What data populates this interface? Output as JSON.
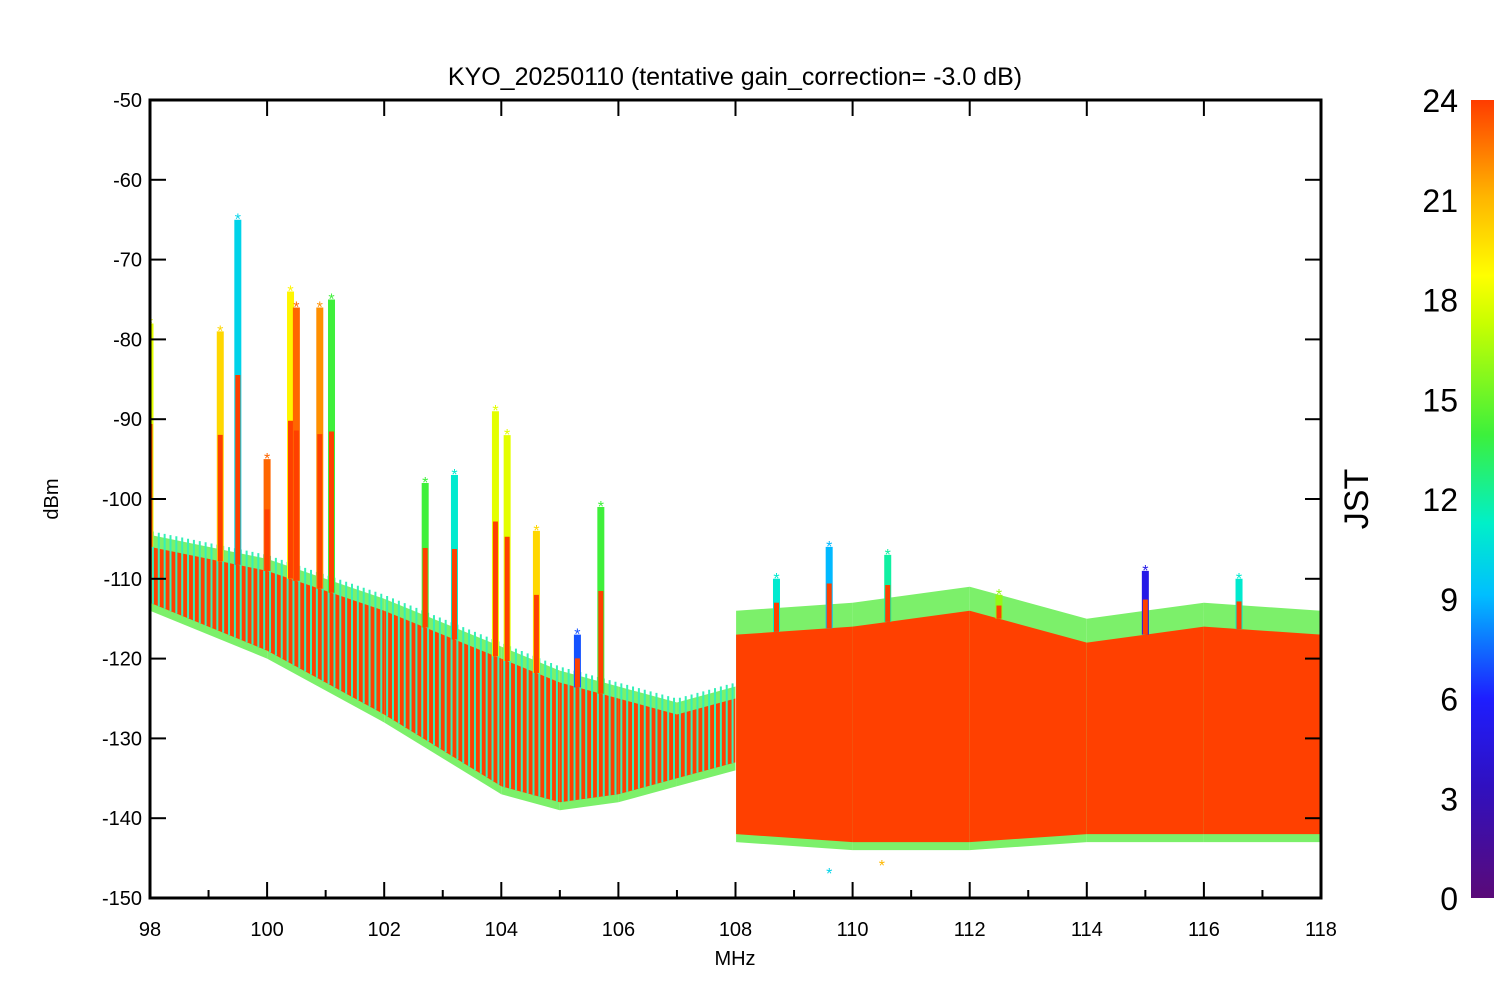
{
  "chart_data": {
    "type": "scatter",
    "title": "KYO_20250110 (tentative gain_correction= -3.0 dB)",
    "xlabel": "MHz",
    "ylabel": "dBm",
    "xlim": [
      98,
      118
    ],
    "ylim": [
      -150,
      -50
    ],
    "x_ticks": [
      "98",
      "100",
      "102",
      "104",
      "106",
      "108",
      "110",
      "112",
      "114",
      "116",
      "118"
    ],
    "y_ticks": [
      "-50",
      "-60",
      "-70",
      "-80",
      "-90",
      "-100",
      "-110",
      "-120",
      "-130",
      "-140",
      "-150"
    ],
    "grid": false,
    "marker": "asterisk",
    "colorbar": {
      "label": "JST",
      "range": [
        0,
        24
      ],
      "ticks": [
        "0",
        "3",
        "6",
        "9",
        "12",
        "15",
        "18",
        "21",
        "24"
      ],
      "colormap": "rainbow (purple-blue-cyan-green-yellow-orange-red)",
      "colors": [
        "#5a0a78",
        "#1e1eff",
        "#00bfff",
        "#00f0c8",
        "#3cf03c",
        "#e6ff00",
        "#ffb400",
        "#ff3c00"
      ]
    },
    "noise_floor": [
      {
        "x": 98,
        "y_top": -106,
        "y_bottom": -113
      },
      {
        "x": 100,
        "y_top": -109,
        "y_bottom": -119
      },
      {
        "x": 102,
        "y_top": -114,
        "y_bottom": -127
      },
      {
        "x": 104,
        "y_top": -120,
        "y_bottom": -136
      },
      {
        "x": 105,
        "y_top": -123,
        "y_bottom": -138
      },
      {
        "x": 106,
        "y_top": -125,
        "y_bottom": -137
      },
      {
        "x": 107,
        "y_top": -127,
        "y_bottom": -135
      },
      {
        "x": 108,
        "y_top": -125,
        "y_bottom": -133
      },
      {
        "x": 108.01,
        "y_top": -117,
        "y_bottom": -142
      },
      {
        "x": 110,
        "y_top": -116,
        "y_bottom": -143
      },
      {
        "x": 112,
        "y_top": -114,
        "y_bottom": -143
      },
      {
        "x": 114,
        "y_top": -118,
        "y_bottom": -142
      },
      {
        "x": 116,
        "y_top": -116,
        "y_bottom": -142
      },
      {
        "x": 118,
        "y_top": -117,
        "y_bottom": -142
      }
    ],
    "peaks": [
      {
        "x": 98.0,
        "y": -78,
        "jst": 18
      },
      {
        "x": 99.2,
        "y": -79,
        "jst": 20
      },
      {
        "x": 99.5,
        "y": -65,
        "jst": 10
      },
      {
        "x": 100.0,
        "y": -95,
        "jst": 23
      },
      {
        "x": 100.4,
        "y": -74,
        "jst": 19
      },
      {
        "x": 100.5,
        "y": -76,
        "jst": 23
      },
      {
        "x": 100.9,
        "y": -76,
        "jst": 22
      },
      {
        "x": 101.1,
        "y": -75,
        "jst": 14
      },
      {
        "x": 102.7,
        "y": -98,
        "jst": 14
      },
      {
        "x": 103.2,
        "y": -97,
        "jst": 11
      },
      {
        "x": 103.9,
        "y": -89,
        "jst": 18
      },
      {
        "x": 104.1,
        "y": -92,
        "jst": 18
      },
      {
        "x": 104.6,
        "y": -104,
        "jst": 20
      },
      {
        "x": 105.3,
        "y": -117,
        "jst": 7
      },
      {
        "x": 105.7,
        "y": -101,
        "jst": 14
      },
      {
        "x": 108.7,
        "y": -110,
        "jst": 11
      },
      {
        "x": 109.6,
        "y": -106,
        "jst": 9
      },
      {
        "x": 110.6,
        "y": -107,
        "jst": 12
      },
      {
        "x": 112.5,
        "y": -112,
        "jst": 16
      },
      {
        "x": 115.0,
        "y": -109,
        "jst": 5
      },
      {
        "x": 116.6,
        "y": -110,
        "jst": 11
      }
    ],
    "min_points": [
      {
        "x": 109.6,
        "y": -147,
        "jst": 10
      },
      {
        "x": 110.5,
        "y": -146,
        "jst": 21
      }
    ]
  }
}
